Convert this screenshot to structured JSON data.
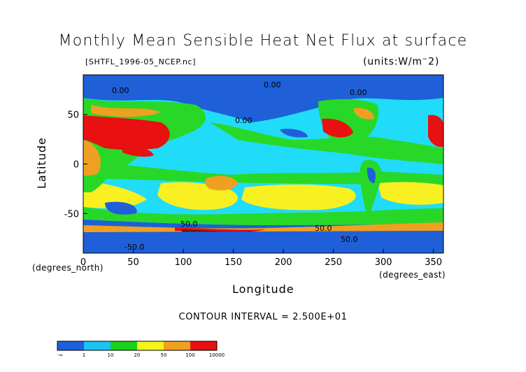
{
  "title": "Monthly Mean Sensible Heat Net Flux at surface",
  "file_label": "[SHTFL_1996-05_NCEP.nc]",
  "units_label": "(units:W/m^-2)",
  "x_axis": {
    "label": "Longitude",
    "units_note": "(degrees_east)",
    "ticks": [
      "0",
      "50",
      "100",
      "150",
      "200",
      "250",
      "300",
      "350"
    ],
    "range": [
      0,
      360
    ]
  },
  "y_axis": {
    "label": "Latitude",
    "units_note": "(degrees_north)",
    "ticks": [
      "50",
      "0",
      "-50"
    ],
    "range": [
      -90,
      90
    ]
  },
  "contour_interval": "CONTOUR INTERVAL = 2.500E+01",
  "contour_labels": [
    "0.00",
    "0.00",
    "0.00",
    "0.00",
    "50.0",
    "50.0",
    "50.0",
    "-50.0"
  ],
  "colorbar": {
    "labels": [
      "-∞",
      "1",
      "10",
      "20",
      "50",
      "100",
      "10000"
    ],
    "colors": [
      "#1f5fd8",
      "#1bc4f4",
      "#19d219",
      "#f4f419",
      "#f0a020",
      "#e81010"
    ]
  },
  "palette": {
    "deep_blue": "#1f5fd8",
    "cyan": "#20dcf8",
    "green": "#28d828",
    "yellow": "#f8f020",
    "orange": "#f0a020",
    "red": "#e81010"
  }
}
